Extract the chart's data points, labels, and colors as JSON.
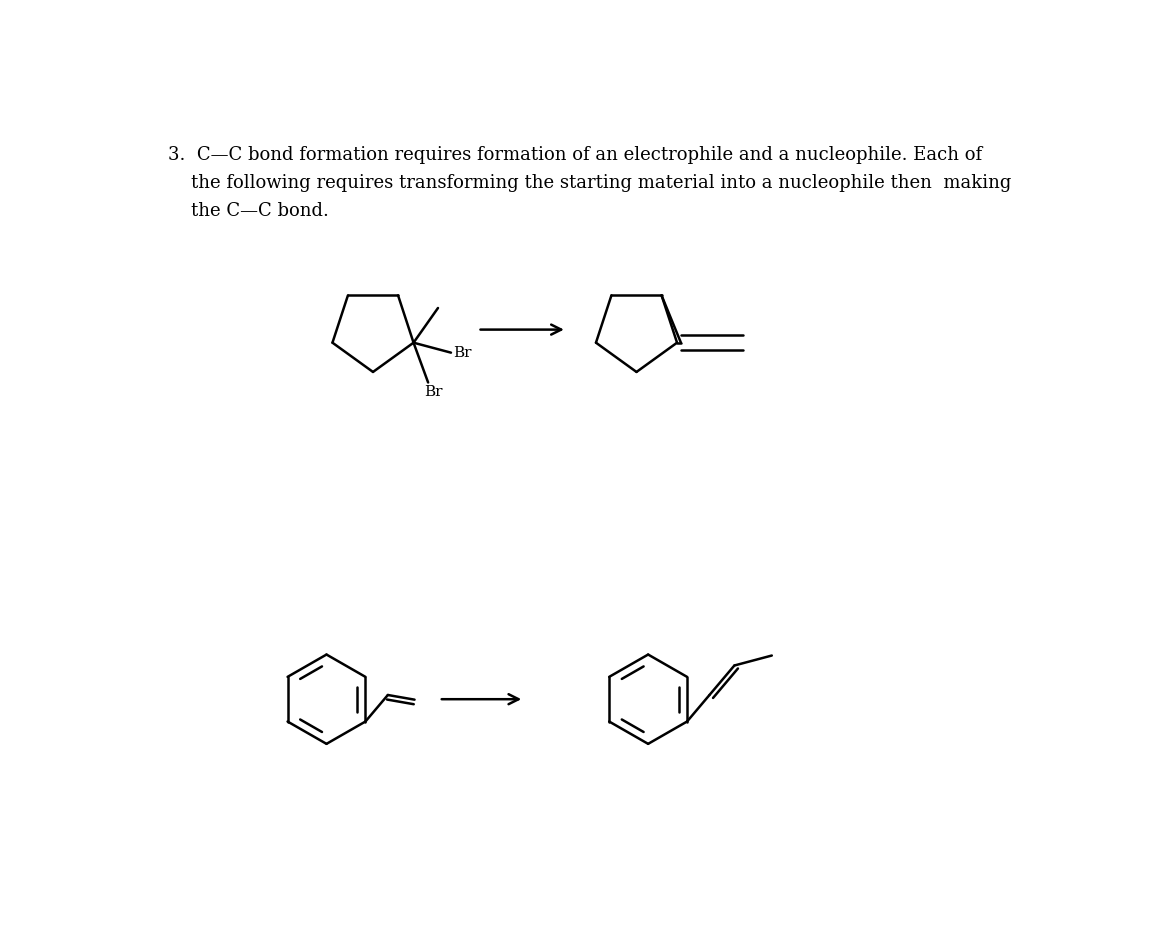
{
  "bg_color": "#ffffff",
  "line_color": "#000000",
  "text_color": "#000000",
  "font_size_title": 13.0,
  "title_line1": "3.  C—C bond formation requires formation of an electrophile and a nucleophile. Each of",
  "title_line2": "    the following requires transforming the starting material into a nucleophile then  making",
  "title_line3": "    the C—C bond.",
  "lw": 1.4,
  "ring1_r": 0.055,
  "benz_r": 0.06
}
